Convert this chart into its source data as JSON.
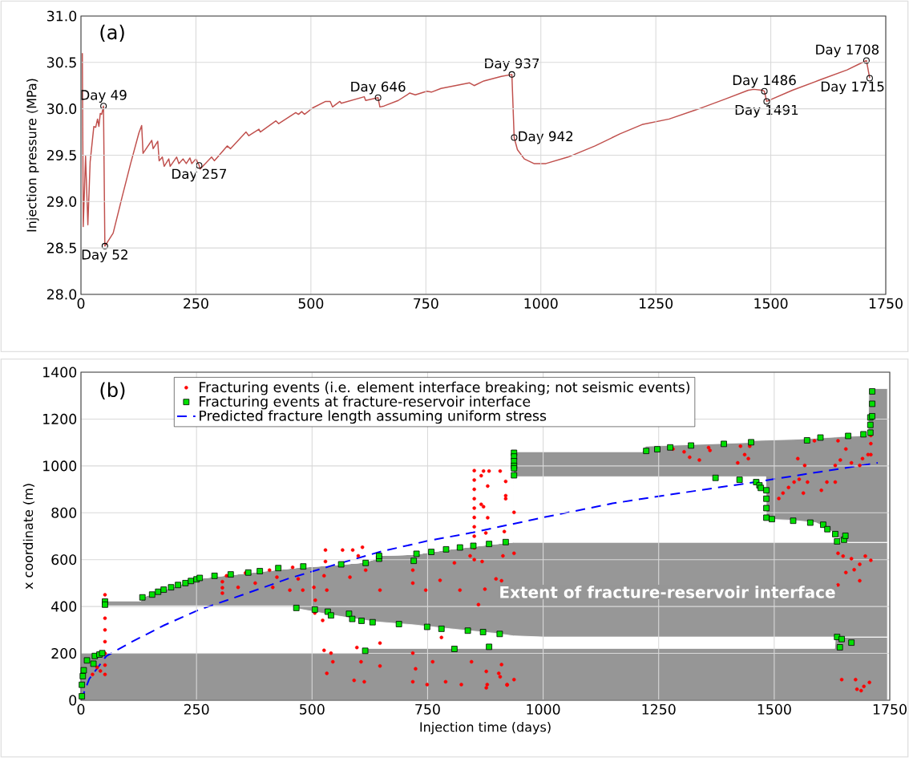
{
  "chart_data": [
    {
      "type": "line",
      "ylabel": "Injection pressure (MPa)",
      "color": "#c0504d",
      "annotations": [
        "(a)",
        {
          "text": "Day 49",
          "x": 49,
          "y": 30.03
        },
        {
          "text": "Day 52",
          "x": 52,
          "y": 28.52
        },
        {
          "text": "Day 257",
          "x": 257,
          "y": 29.39
        },
        {
          "text": "Day 646",
          "x": 646,
          "y": 30.12
        },
        {
          "text": "Day 937",
          "x": 937,
          "y": 30.37
        },
        {
          "text": "Day 942",
          "x": 942,
          "y": 29.69
        },
        {
          "text": "Day 1486",
          "x": 1486,
          "y": 30.19
        },
        {
          "text": "Day 1491",
          "x": 1491,
          "y": 30.08
        },
        {
          "text": "Day 1708",
          "x": 1708,
          "y": 30.52
        },
        {
          "text": "Day 1715",
          "x": 1715,
          "y": 30.33
        }
      ],
      "x": [
        3,
        5,
        10,
        15,
        20,
        28,
        32,
        36,
        39,
        42,
        45,
        49,
        52,
        70,
        89,
        108,
        126,
        132,
        135,
        154,
        157,
        167,
        170,
        177,
        181,
        191,
        194,
        208,
        213,
        222,
        229,
        237,
        241,
        250,
        257,
        259,
        284,
        290,
        318,
        325,
        359,
        365,
        387,
        390,
        424,
        430,
        467,
        473,
        480,
        486,
        504,
        532,
        542,
        547,
        563,
        566,
        616,
        619,
        646,
        650,
        659,
        690,
        715,
        727,
        752,
        762,
        783,
        845,
        855,
        876,
        914,
        937,
        942,
        949,
        964,
        985,
        1011,
        1059,
        1118,
        1172,
        1220,
        1279,
        1338,
        1398,
        1451,
        1463,
        1481,
        1486,
        1491,
        1547,
        1606,
        1666,
        1695,
        1708,
        1715
      ],
      "values": [
        30.6,
        28.73,
        29.49,
        28.75,
        29.43,
        29.81,
        29.8,
        29.89,
        29.81,
        29.95,
        29.94,
        30.03,
        28.52,
        28.66,
        29.04,
        29.41,
        29.74,
        29.82,
        29.52,
        29.66,
        29.57,
        29.65,
        29.44,
        29.48,
        29.38,
        29.46,
        29.38,
        29.48,
        29.41,
        29.46,
        29.41,
        29.47,
        29.41,
        29.46,
        29.39,
        29.35,
        29.48,
        29.44,
        29.6,
        29.57,
        29.75,
        29.71,
        29.78,
        29.75,
        29.87,
        29.84,
        29.96,
        29.94,
        29.97,
        29.94,
        30.01,
        30.08,
        30.08,
        30.02,
        30.08,
        30.06,
        30.13,
        30.09,
        30.12,
        30.02,
        30.03,
        30.09,
        30.17,
        30.15,
        30.19,
        30.18,
        30.22,
        30.28,
        30.25,
        30.3,
        30.35,
        30.37,
        29.69,
        29.56,
        29.46,
        29.41,
        29.41,
        29.48,
        29.6,
        29.73,
        29.83,
        29.89,
        29.99,
        30.1,
        30.2,
        30.21,
        30.2,
        30.19,
        30.08,
        30.2,
        30.31,
        30.42,
        30.49,
        30.52,
        30.33
      ],
      "xlim": [
        0,
        1750
      ],
      "ylim": [
        28,
        31
      ],
      "xticks": [
        0,
        250,
        500,
        750,
        1000,
        1250,
        1500,
        1750
      ],
      "yticks": [
        {
          "value": 28,
          "label": "28.0"
        },
        {
          "value": 28.5,
          "label": "28.5"
        },
        {
          "value": 29,
          "label": "29.0"
        },
        {
          "value": 29.5,
          "label": "29.5"
        },
        {
          "value": 30,
          "label": "30.0"
        },
        {
          "value": 30.5,
          "label": "30.5"
        },
        {
          "value": 31,
          "label": "31.0"
        }
      ],
      "grid": true
    },
    {
      "type": "scatter",
      "xlabel": "Injection time (days)",
      "ylabel": "x coordinate (m)",
      "annotations": [
        "(b)",
        "Extent of fracture-reservoir interface"
      ],
      "series": [
        {
          "type": "area",
          "color": "#969696",
          "x": [
            0,
            51,
            52,
            130,
            133,
            250,
            300,
            400,
            463,
            466,
            540,
            611,
            612,
            640,
            650,
            720,
            800,
            900,
            935,
            936,
            1000,
            1215,
            1222,
            1450,
            1455,
            1482,
            1483,
            1540,
            1590,
            1615,
            1631,
            1632,
            1645,
            1661,
            1703,
            1705,
            1745
          ],
          "values": [
            200,
            200,
            200,
            200,
            200,
            200,
            200,
            200,
            200,
            200,
            200,
            200,
            222,
            222,
            222,
            222,
            222,
            222,
            222,
            222,
            222,
            222,
            222,
            222,
            222,
            222,
            222,
            222,
            222,
            222,
            222,
            270,
            270,
            270,
            270,
            270,
            270
          ]
        },
        {
          "type": "area",
          "color": "#ffffff",
          "x": [
            0,
            51,
            52,
            130,
            133,
            250,
            300,
            400,
            463,
            466,
            540,
            611,
            612,
            640,
            650,
            720,
            800,
            900,
            935,
            936,
            1000,
            1215,
            1222,
            1450,
            1455,
            1482,
            1483,
            1540,
            1590,
            1615,
            1631,
            1632,
            1645,
            1661,
            1703,
            1705,
            1745
          ],
          "values": [
            0,
            0,
            203,
            203,
            203,
            203,
            203,
            203,
            203,
            192,
            165,
            142,
            120,
            113,
            111,
            100,
            83,
            63,
            53,
            53,
            48,
            48,
            48,
            48,
            48,
            48,
            48,
            48,
            48,
            48,
            48,
            0,
            0,
            0,
            0,
            0,
            0
          ]
        },
        {
          "type": "area",
          "color": "#979797",
          "x": [
            0,
            51,
            52,
            130,
            133,
            250,
            300,
            400,
            463,
            466,
            540,
            611,
            612,
            640,
            650,
            720,
            800,
            900,
            935,
            936,
            1000,
            1215,
            1222,
            1450,
            1455,
            1482,
            1483,
            1540,
            1590,
            1615,
            1631,
            1632,
            1645,
            1661,
            1703,
            1705,
            1745
          ],
          "values": [
            0,
            0,
            22,
            22,
            37,
            115,
            127,
            149,
            162,
            174,
            211,
            246,
            246,
            270,
            285,
            300,
            340,
            383,
            400,
            399,
            404,
            404,
            404,
            404,
            404,
            404,
            404,
            404,
            404,
            404,
            404,
            404,
            404,
            404,
            404,
            404,
            404
          ]
        },
        {
          "type": "area",
          "color": "#ffffff",
          "x": [
            0,
            51,
            52,
            130,
            133,
            250,
            300,
            400,
            463,
            466,
            540,
            611,
            612,
            640,
            650,
            720,
            800,
            900,
            935,
            936,
            1000,
            1215,
            1222,
            1450,
            1455,
            1482,
            1483,
            1540,
            1590,
            1615,
            1631,
            1632,
            1645,
            1661,
            1703,
            1705,
            1745
          ],
          "values": [
            0,
            0,
            0,
            0,
            0,
            0,
            0,
            0,
            0,
            0,
            0,
            0,
            0,
            0,
            0,
            0,
            0,
            0,
            0,
            280,
            280,
            280,
            280,
            280,
            280,
            280,
            99,
            94,
            84,
            61,
            36,
            31,
            11,
            0,
            0,
            0,
            0
          ]
        },
        {
          "type": "area",
          "color": "#959595",
          "x": [
            0,
            51,
            52,
            130,
            133,
            250,
            300,
            400,
            463,
            466,
            540,
            611,
            612,
            640,
            650,
            720,
            800,
            900,
            935,
            936,
            1000,
            1215,
            1222,
            1450,
            1455,
            1482,
            1483,
            1540,
            1590,
            1615,
            1631,
            1632,
            1645,
            1661,
            1703,
            1705,
            1745
          ],
          "values": [
            0,
            0,
            0,
            0,
            0,
            0,
            0,
            0,
            0,
            0,
            0,
            0,
            0,
            0,
            0,
            0,
            0,
            0,
            0,
            106,
            106,
            106,
            130,
            146,
            154,
            156,
            337,
            345,
            360,
            386,
            413,
            418,
            440,
            452,
            456,
            656,
            656
          ]
        },
        {
          "type": "scatter",
          "name": "Fracturing events (i.e. element interface breaking; not seismic events)",
          "color": "#ff0000",
          "marker": "circle",
          "x": [
            52,
            52,
            52,
            52,
            52,
            52,
            52,
            25,
            35,
            42,
            306,
            306,
            306,
            315,
            340,
            356,
            377,
            408,
            415,
            424,
            452,
            458,
            470,
            480,
            504,
            507,
            506,
            529,
            529,
            526,
            532,
            523,
            526,
            532,
            545,
            541,
            566,
            588,
            600,
            609,
            582,
            616,
            647,
            597,
            606,
            591,
            613,
            647,
            647,
            718,
            718,
            718,
            718,
            724,
            746,
            749,
            761,
            777,
            780,
            789,
            808,
            820,
            823,
            842,
            851,
            851,
            851,
            851,
            851,
            851,
            851,
            851,
            851,
            851,
            845,
            860,
            866,
            866,
            876,
            879,
            898,
            904,
            913,
            919,
            919,
            922,
            910,
            871,
            883,
            880,
            871,
            880,
            907,
            919,
            937,
            916,
            868,
            937,
            910,
            874,
            877,
            907,
            937,
            922,
            877,
            1281,
            1305,
            1317,
            1338,
            1358,
            1361,
            1427,
            1436,
            1444,
            1421,
            1447,
            1510,
            1519,
            1531,
            1543,
            1554,
            1563,
            1572,
            1551,
            1566,
            1587,
            1602,
            1614,
            1632,
            1632,
            1643,
            1638,
            1655,
            1667,
            1691,
            1703,
            1709,
            1709,
            1709,
            1685,
            1638,
            1649,
            1667,
            1685,
            1673,
            1655,
            1638,
            1685,
            1709,
            1697,
            1646,
            1676,
            1679,
            1694,
            1706,
            1688
          ],
          "values": [
            450,
            350,
            300,
            250,
            200,
            150,
            110,
            110,
            140,
            125,
            506,
            480,
            457,
            531,
            482,
            543,
            500,
            555,
            482,
            525,
            470,
            567,
            518,
            470,
            482,
            427,
            372,
            641,
            592,
            531,
            470,
            341,
            213,
            115,
            164,
            201,
            641,
            641,
            616,
            653,
            525,
            555,
            470,
            225,
            164,
            85,
            79,
            244,
            146,
            555,
            500,
            201,
            79,
            134,
            470,
            67,
            164,
            512,
            268,
            79,
            586,
            470,
            67,
            616,
            980,
            940,
            900,
            860,
            820,
            780,
            740,
            700,
            650,
            600,
            164,
            408,
            958,
            836,
            714,
            67,
            518,
            115,
            616,
            934,
            860,
            67,
            152,
            978,
            978,
            914,
            826,
            779,
            978,
            873,
            802,
            720,
            592,
            627,
            510,
            474,
            123,
            100,
            88,
            65,
            53,
            1072,
            1060,
            1037,
            1025,
            1078,
            1066,
            1084,
            1048,
            1031,
            1013,
            1084,
            861,
            884,
            908,
            931,
            943,
            884,
            931,
            1031,
            1002,
            1107,
            896,
            931,
            931,
            1002,
            1025,
            1107,
            1072,
            1013,
            1031,
            1048,
            1095,
            1048,
            1130,
            1002,
            627,
            615,
            604,
            580,
            557,
            545,
            492,
            510,
            597,
            615,
            88,
            88,
            47,
            59,
            76,
            41
          ]
        },
        {
          "type": "scatter",
          "name": "Fracturing events at fracture-reservoir interface",
          "color": "#00e000",
          "marker": "square",
          "x": [
            2,
            2,
            4,
            6,
            13,
            27,
            30,
            40,
            46,
            52,
            52,
            133,
            154,
            167,
            179,
            195,
            210,
            226,
            238,
            250,
            257,
            289,
            324,
            362,
            387,
            427,
            481,
            563,
            616,
            645,
            645,
            720,
            726,
            758,
            790,
            820,
            849,
            883,
            919,
            466,
            506,
            534,
            541,
            580,
            587,
            607,
            631,
            688,
            749,
            780,
            837,
            870,
            906,
            615,
            808,
            883,
            937,
            937,
            937,
            937,
            937,
            937,
            1223,
            1247,
            1275,
            1320,
            1391,
            1450,
            1571,
            1600,
            1660,
            1693,
            1708,
            1708,
            1708,
            1712,
            1712,
            1712,
            1373,
            1425,
            1461,
            1468,
            1471,
            1483,
            1483,
            1483,
            1483,
            1495,
            1541,
            1578,
            1606,
            1615,
            1632,
            1636,
            1651,
            1654,
            1636,
            1646,
            1642,
            1667
          ],
          "values": [
            17,
            66,
            103,
            128,
            170,
            156,
            189,
            195,
            201,
            421,
            408,
            439,
            451,
            463,
            472,
            482,
            492,
            500,
            509,
            516,
            522,
            531,
            537,
            545,
            551,
            564,
            571,
            580,
            586,
            604,
            616,
            595,
            625,
            633,
            644,
            652,
            659,
            667,
            675,
            394,
            387,
            378,
            362,
            369,
            347,
            339,
            333,
            325,
            313,
            305,
            297,
            291,
            283,
            211,
            219,
            228,
            1056,
            1040,
            1020,
            1000,
            990,
            960,
            1064,
            1071,
            1079,
            1087,
            1094,
            1101,
            1109,
            1121,
            1128,
            1135,
            1142,
            1175,
            1207,
            1212,
            1265,
            1318,
            949,
            941,
            931,
            917,
            906,
            896,
            860,
            820,
            779,
            773,
            766,
            758,
            749,
            730,
            709,
            678,
            685,
            702,
            270,
            261,
            226,
            246
          ]
        },
        {
          "type": "line",
          "name": "Predicted fracture length assuming uniform stress",
          "color": "#0000ff",
          "line_style": "dashed",
          "x": [
            0,
            18,
            55,
            105,
            180,
            253,
            350,
            450,
            540,
            650,
            750,
            848,
            1000,
            1150,
            1300,
            1459,
            1600,
            1724
          ],
          "values": [
            0,
            91,
            189,
            244,
            320,
            384,
            450,
            520,
            573,
            635,
            680,
            716,
            780,
            840,
            885,
            931,
            975,
            1013
          ]
        }
      ],
      "xlim": [
        0,
        1750
      ],
      "ylim": [
        0,
        1400
      ],
      "xticks": [
        0,
        250,
        500,
        750,
        1000,
        1250,
        1500,
        1750
      ],
      "yticks": [
        0,
        200,
        400,
        600,
        800,
        1000,
        1200,
        1400
      ],
      "grid": true,
      "legend": "top left",
      "stacked": true
    }
  ]
}
